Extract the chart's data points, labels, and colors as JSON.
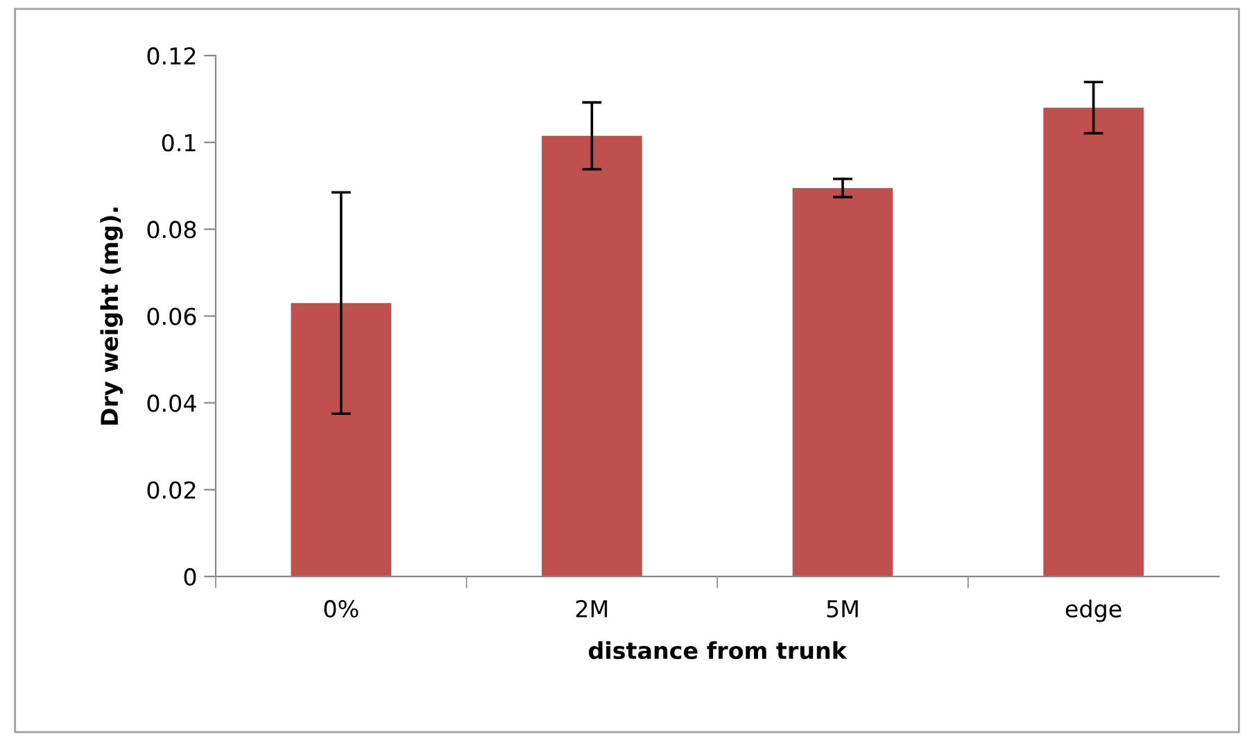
{
  "chart_data": {
    "type": "bar",
    "xlabel": "distance from trunk",
    "ylabel": "Dry weight (mg).",
    "categories": [
      "0%",
      "2M",
      "5M",
      "edge"
    ],
    "values": [
      0.063,
      0.1015,
      0.0895,
      0.108
    ],
    "errors": [
      0.0255,
      0.0077,
      0.0021,
      0.0059
    ],
    "color": "#c0504d",
    "ylim": [
      0,
      0.12
    ],
    "yticks": [
      {
        "value": 0,
        "label": "0"
      },
      {
        "value": 0.02,
        "label": "0.02"
      },
      {
        "value": 0.04,
        "label": "0.04"
      },
      {
        "value": 0.06,
        "label": "0.06"
      },
      {
        "value": 0.08,
        "label": "0.08"
      },
      {
        "value": 0.1,
        "label": "0.1"
      },
      {
        "value": 0.12,
        "label": "0.12"
      }
    ],
    "grid": false,
    "legend": false
  }
}
